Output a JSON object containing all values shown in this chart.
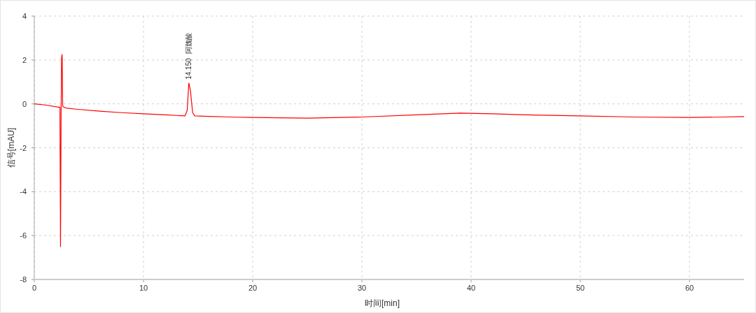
{
  "chart_data": {
    "type": "line",
    "xlabel": "时间[min]",
    "ylabel": "信号[mAU]",
    "x": [
      0,
      1,
      2.2,
      2.35,
      2.4,
      2.45,
      2.5,
      2.55,
      2.6,
      2.7,
      3,
      4,
      6,
      8,
      10,
      12,
      13.8,
      14.0,
      14.15,
      14.3,
      14.5,
      14.7,
      16,
      18,
      20,
      25,
      30,
      35,
      39,
      42,
      45,
      50,
      55,
      60,
      63,
      65
    ],
    "series": [
      {
        "color": "#ff0000",
        "values": [
          0,
          -0.05,
          -0.15,
          -0.15,
          -6.5,
          -0.8,
          2.1,
          2.25,
          -0.1,
          -0.15,
          -0.2,
          -0.25,
          -0.33,
          -0.4,
          -0.45,
          -0.5,
          -0.55,
          -0.3,
          0.95,
          0.6,
          -0.4,
          -0.55,
          -0.57,
          -0.6,
          -0.62,
          -0.65,
          -0.6,
          -0.5,
          -0.42,
          -0.45,
          -0.5,
          -0.55,
          -0.6,
          -0.62,
          -0.6,
          -0.58
        ]
      }
    ],
    "xlim": [
      0,
      65
    ],
    "ylim": [
      -8,
      4
    ],
    "xticks": [
      0,
      10,
      20,
      30,
      40,
      50,
      60
    ],
    "yticks": [
      -8,
      -6,
      -4,
      -2,
      0,
      2,
      4
    ],
    "grid": true,
    "marker": "none",
    "line_style": "solid",
    "annotations": [
      {
        "text": "14.150",
        "x": 14.15,
        "y": 0.95
      },
      "阿魏酸"
    ]
  }
}
